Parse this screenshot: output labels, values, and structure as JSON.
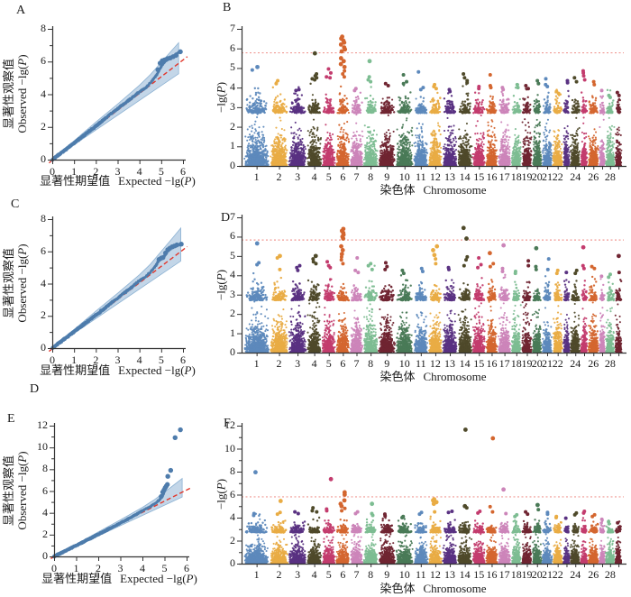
{
  "figure": {
    "stray_label": "D",
    "background": "#ffffff"
  },
  "palette": {
    "chromosome_colors": [
      "#5d89bc",
      "#e9ac44",
      "#5a3282",
      "#4f4a2a",
      "#c33c6e",
      "#d4662f",
      "#cc85b9",
      "#7dbd92",
      "#702532",
      "#4a7a57"
    ],
    "qq_point": "#4e7cac",
    "qq_band_fill": "#b9cfe4",
    "qq_band_edge": "#8db2d3",
    "identity_line": "#e2382c",
    "threshold_line": "#f09a94",
    "axis": "#333333"
  },
  "chart_data": [
    {
      "panel": "A",
      "type": "scatter",
      "subtype": "qq",
      "xlabel_cn": "显著性期望值",
      "xlabel_en": {
        "pre": "Expected −lg(",
        "italic": "P",
        "post": ")"
      },
      "ylabel_cn": "显著性观察值",
      "ylabel_en": {
        "pre": "Observed −lg(",
        "italic": "P",
        "post": ")"
      },
      "xlim": [
        0,
        6
      ],
      "ylim": [
        0,
        8
      ],
      "xticks": [
        0,
        1,
        2,
        3,
        4,
        5,
        6
      ],
      "yticks": [
        0,
        2,
        4,
        6,
        8
      ],
      "yticks_minor": [
        1,
        3,
        5,
        7
      ],
      "curve": [
        [
          0,
          0
        ],
        [
          0.5,
          0.5
        ],
        [
          1,
          1.02
        ],
        [
          1.5,
          1.53
        ],
        [
          2,
          2.05
        ],
        [
          2.5,
          2.6
        ],
        [
          3,
          3.12
        ],
        [
          3.5,
          3.62
        ],
        [
          4,
          4.15
        ],
        [
          4.3,
          4.4
        ],
        [
          4.6,
          4.85
        ],
        [
          4.8,
          5.2
        ],
        [
          5.0,
          5.7
        ],
        [
          5.15,
          6.0
        ],
        [
          5.3,
          6.15
        ],
        [
          5.5,
          6.25
        ],
        [
          5.8,
          6.55
        ]
      ],
      "tail_points": [
        [
          4.85,
          5.5
        ],
        [
          4.95,
          5.9
        ],
        [
          5.05,
          6.05
        ],
        [
          5.15,
          6.1
        ],
        [
          5.22,
          6.12
        ],
        [
          5.3,
          6.18
        ],
        [
          5.42,
          6.22
        ],
        [
          5.55,
          6.3
        ],
        [
          5.68,
          6.38
        ],
        [
          5.88,
          6.6
        ]
      ],
      "band": {
        "top": [
          [
            0,
            0.1
          ],
          [
            1,
            1.15
          ],
          [
            2,
            2.3
          ],
          [
            3,
            3.4
          ],
          [
            4,
            4.55
          ],
          [
            4.5,
            5.2
          ],
          [
            5,
            5.95
          ],
          [
            5.4,
            6.55
          ],
          [
            5.8,
            7.15
          ]
        ],
        "x_end": 5.8,
        "bottom_end": 5.25
      },
      "identity_line": true
    },
    {
      "panel": "B",
      "type": "scatter",
      "subtype": "manhattan",
      "xlabel_cn": "染色体",
      "xlabel_en": "Chromosome",
      "ylabel": {
        "pre": "−lg(",
        "italic": "P",
        "post": ")"
      },
      "ylim": [
        0,
        7
      ],
      "yticks": [
        0,
        1,
        2,
        3,
        4,
        5,
        6,
        7
      ],
      "yticks_minor": [],
      "threshold": 5.8,
      "chrom_labels": [
        "1",
        "2",
        "3",
        "4",
        "5",
        "6",
        "7",
        "8",
        "9",
        "10",
        "11",
        "12",
        "13",
        "14",
        "15",
        "16",
        "17",
        "18",
        "19",
        "20",
        "21",
        "22",
        "",
        "24",
        "",
        "26",
        "",
        "28",
        ""
      ],
      "chrom_weights": [
        30,
        21,
        21,
        17,
        16,
        16,
        15,
        17,
        20,
        20,
        17,
        16,
        17,
        17,
        15,
        14,
        15,
        12,
        12,
        11,
        12,
        12,
        8,
        12,
        8,
        13,
        7,
        11,
        8
      ],
      "peaks": {
        "1": [
          5.05,
          4.9
        ],
        "2": [
          4.35,
          4.2
        ],
        "3": [
          3.9,
          3.85
        ],
        "4": [
          5.75,
          4.7,
          4.6,
          4.5,
          4.45,
          4.4
        ],
        "5": [
          4.95,
          4.75,
          4.55,
          4.5
        ],
        "6": [
          6.6,
          6.5,
          6.4,
          6.3,
          6.2,
          6.05,
          5.95,
          5.85,
          5.5,
          5.35,
          5.2,
          5.05,
          4.85,
          4.7,
          4.55
        ],
        "7": [
          3.95,
          3.85
        ],
        "8": [
          5.35,
          4.55,
          4.4,
          4.3
        ],
        "9": [
          4.2,
          4.1
        ],
        "10": [
          4.65,
          4.3,
          4.2
        ],
        "11": [
          4.8,
          4.0,
          3.9
        ],
        "12": [
          4.15,
          4.05,
          3.95
        ],
        "13": [
          3.9,
          3.8
        ],
        "14": [
          4.7,
          4.5,
          4.35,
          4.25
        ],
        "15": [
          4.05,
          3.95
        ],
        "16": [
          4.65,
          4.1,
          4.0
        ],
        "17": [
          4.0,
          3.9
        ],
        "18": [
          4.15,
          4.0
        ],
        "19": [
          4.1,
          3.95
        ],
        "20": [
          4.35,
          4.2
        ],
        "21": [
          4.45,
          4.15,
          4.05
        ],
        "22": [
          3.8,
          3.7
        ],
        "23": [
          4.35,
          4.25
        ],
        "24": [
          4.5,
          4.3
        ],
        "25": [
          4.85,
          4.75,
          4.6,
          4.4
        ],
        "26": [
          4.3,
          4.15
        ],
        "27": [
          3.85
        ],
        "28": [
          3.6,
          3.5
        ],
        "29": [
          3.75,
          3.6
        ]
      }
    },
    {
      "panel": "C",
      "type": "scatter",
      "subtype": "qq",
      "xlabel_cn": "显著性期望值",
      "xlabel_en": {
        "pre": "Expected −lg(",
        "italic": "P",
        "post": ")"
      },
      "ylabel_cn": "显著性观察值",
      "ylabel_en": {
        "pre": "Observed −lg(",
        "italic": "P",
        "post": ")"
      },
      "xlim": [
        0,
        6
      ],
      "ylim": [
        0,
        8
      ],
      "xticks": [
        0,
        1,
        2,
        3,
        4,
        5,
        6
      ],
      "yticks": [
        0,
        2,
        4,
        6,
        8
      ],
      "yticks_minor": [
        1,
        3,
        5,
        7
      ],
      "curve": [
        [
          0,
          0
        ],
        [
          1,
          1.02
        ],
        [
          2,
          2.05
        ],
        [
          3,
          3.1
        ],
        [
          3.5,
          3.62
        ],
        [
          4,
          4.18
        ],
        [
          4.3,
          4.45
        ],
        [
          4.6,
          4.85
        ],
        [
          4.75,
          5.1
        ],
        [
          4.9,
          5.5
        ],
        [
          5.0,
          5.58
        ],
        [
          5.1,
          5.62
        ],
        [
          5.25,
          5.95
        ],
        [
          5.4,
          6.15
        ],
        [
          5.6,
          6.3
        ],
        [
          5.9,
          6.45
        ]
      ],
      "tail_points": [
        [
          4.9,
          5.5
        ],
        [
          5.0,
          5.58
        ],
        [
          5.08,
          5.62
        ],
        [
          5.2,
          5.9
        ],
        [
          5.3,
          6.1
        ],
        [
          5.4,
          6.2
        ],
        [
          5.5,
          6.28
        ],
        [
          5.6,
          6.33
        ],
        [
          5.72,
          6.4
        ],
        [
          5.92,
          6.45
        ]
      ],
      "band": {
        "top": [
          [
            0,
            0.1
          ],
          [
            1,
            1.15
          ],
          [
            2,
            2.3
          ],
          [
            3,
            3.4
          ],
          [
            4,
            4.55
          ],
          [
            4.5,
            5.2
          ],
          [
            5,
            6.0
          ],
          [
            5.5,
            6.8
          ],
          [
            5.9,
            7.45
          ]
        ],
        "x_end": 5.9,
        "bottom_end": 5.4
      },
      "identity_line": true
    },
    {
      "panel": "D",
      "type": "scatter",
      "subtype": "manhattan",
      "xlabel_cn": "染色体",
      "xlabel_en": "Chromosome",
      "ylabel": {
        "pre": "−lg(",
        "italic": "P",
        "post": ")"
      },
      "ylim": [
        0,
        7
      ],
      "yticks": [
        0,
        1,
        2,
        3,
        4,
        5,
        6,
        7
      ],
      "yticks_minor": [],
      "threshold": 5.85,
      "chrom_labels": [
        "1",
        "2",
        "3",
        "4",
        "5",
        "6",
        "7",
        "8",
        "9",
        "10",
        "11",
        "12",
        "13",
        "14",
        "15",
        "16",
        "17",
        "18",
        "19",
        "20",
        "21",
        "22",
        "",
        "24",
        "",
        "26",
        "",
        "28",
        ""
      ],
      "chrom_weights": [
        30,
        21,
        21,
        17,
        16,
        16,
        15,
        17,
        20,
        20,
        17,
        16,
        17,
        17,
        15,
        14,
        15,
        12,
        12,
        11,
        12,
        12,
        8,
        12,
        8,
        13,
        7,
        11,
        8
      ],
      "peaks": {
        "1": [
          5.65,
          4.65,
          4.55
        ],
        "2": [
          5.0,
          4.9,
          4.3
        ],
        "3": [
          4.5,
          4.4,
          4.25
        ],
        "4": [
          5.0,
          4.85,
          4.7,
          4.6
        ],
        "5": [
          4.7,
          4.5,
          4.4
        ],
        "6": [
          6.4,
          6.3,
          6.2,
          6.1,
          6.0,
          5.9,
          5.5,
          5.3,
          5.1,
          4.95,
          4.8,
          4.6
        ],
        "7": [
          4.9,
          4.25,
          4.15
        ],
        "8": [
          4.6,
          4.5,
          4.3
        ],
        "9": [
          4.65,
          4.45,
          4.3
        ],
        "10": [
          4.25,
          4.1
        ],
        "11": [
          4.35,
          4.2
        ],
        "12": [
          5.5,
          5.3,
          5.05,
          4.85,
          4.6
        ],
        "13": [
          4.4,
          4.3
        ],
        "14": [
          6.45,
          5.9,
          4.95,
          4.8,
          4.5
        ],
        "15": [
          4.9,
          4.55,
          4.4
        ],
        "16": [
          5.15,
          4.6,
          4.45
        ],
        "17": [
          5.55,
          4.35,
          4.2
        ],
        "18": [
          4.2,
          4.1
        ],
        "19": [
          4.75,
          4.5
        ],
        "20": [
          5.4,
          4.45,
          4.3
        ],
        "21": [
          4.85,
          4.3
        ],
        "22": [
          4.25,
          4.1
        ],
        "23": [
          4.15
        ],
        "24": [
          4.25,
          4.1
        ],
        "25": [
          5.45,
          4.5,
          4.35
        ],
        "26": [
          4.45,
          4.35
        ],
        "27": [
          3.95
        ],
        "28": [
          4.05,
          3.9
        ],
        "29": [
          5.0,
          4.15
        ]
      }
    },
    {
      "panel": "E",
      "type": "scatter",
      "subtype": "qq",
      "xlabel_cn": "显著性期望值",
      "xlabel_en": {
        "pre": "Expected −lg(",
        "italic": "P",
        "post": ")"
      },
      "ylabel_cn": "显著性观察值",
      "ylabel_en": {
        "pre": "Observed −lg(",
        "italic": "P",
        "post": ")"
      },
      "xlim": [
        0,
        6
      ],
      "ylim": [
        0,
        12
      ],
      "xticks": [
        0,
        1,
        2,
        3,
        4,
        5,
        6
      ],
      "yticks": [
        0,
        2,
        4,
        6,
        8,
        10,
        12
      ],
      "yticks_minor": [
        1,
        3,
        5,
        7,
        9,
        11
      ],
      "curve": [
        [
          0,
          0
        ],
        [
          1,
          1.0
        ],
        [
          2,
          2.02
        ],
        [
          3,
          3.06
        ],
        [
          3.5,
          3.6
        ],
        [
          4,
          4.2
        ],
        [
          4.3,
          4.5
        ],
        [
          4.6,
          4.9
        ],
        [
          4.8,
          5.25
        ],
        [
          4.95,
          5.7
        ],
        [
          5.05,
          6.2
        ],
        [
          5.15,
          6.6
        ]
      ],
      "tail_points": [
        [
          4.85,
          5.5
        ],
        [
          4.92,
          5.9
        ],
        [
          4.98,
          6.1
        ],
        [
          5.03,
          6.3
        ],
        [
          5.08,
          6.45
        ],
        [
          5.13,
          6.6
        ],
        [
          5.15,
          7.35
        ],
        [
          5.28,
          7.9
        ],
        [
          5.48,
          10.9
        ],
        [
          5.72,
          11.62
        ]
      ],
      "band": {
        "top": [
          [
            0,
            0.1
          ],
          [
            1,
            1.12
          ],
          [
            2,
            2.25
          ],
          [
            3,
            3.35
          ],
          [
            4,
            4.5
          ],
          [
            4.5,
            5.15
          ],
          [
            5,
            5.9
          ],
          [
            5.45,
            6.6
          ],
          [
            5.8,
            7.15
          ]
        ],
        "x_end": 5.8,
        "bottom_end": 5.45
      },
      "identity_line": true
    },
    {
      "panel": "F",
      "type": "scatter",
      "subtype": "manhattan",
      "xlabel_cn": "染色体",
      "xlabel_en": "Chromosome",
      "ylabel": {
        "pre": "−lg(",
        "italic": "P",
        "post": ")"
      },
      "ylim": [
        0,
        12
      ],
      "yticks": [
        0,
        2,
        4,
        6,
        8,
        10,
        12
      ],
      "yticks_minor": [
        1,
        3,
        5,
        7,
        9,
        11
      ],
      "threshold": 5.85,
      "chrom_labels": [
        "1",
        "2",
        "3",
        "4",
        "5",
        "6",
        "7",
        "8",
        "9",
        "10",
        "11",
        "12",
        "13",
        "14",
        "15",
        "16",
        "17",
        "18",
        "19",
        "20",
        "21",
        "22",
        "",
        "24",
        "",
        "26",
        "",
        "28",
        ""
      ],
      "chrom_weights": [
        30,
        21,
        21,
        17,
        16,
        16,
        15,
        17,
        20,
        20,
        17,
        16,
        17,
        17,
        15,
        14,
        15,
        12,
        12,
        11,
        12,
        12,
        8,
        12,
        8,
        13,
        7,
        11,
        8
      ],
      "peaks": {
        "1": [
          7.95,
          4.35,
          4.2
        ],
        "2": [
          5.45,
          4.45,
          4.3
        ],
        "3": [
          4.5,
          4.35
        ],
        "4": [
          4.85,
          4.6,
          4.5
        ],
        "5": [
          7.35,
          4.75,
          4.6
        ],
        "6": [
          6.2,
          6.0,
          5.5,
          5.2,
          5.0,
          4.8,
          4.6
        ],
        "7": [
          4.5,
          4.35
        ],
        "8": [
          5.2,
          4.35,
          4.2
        ],
        "9": [
          4.3,
          4.15
        ],
        "10": [
          4.1,
          4.0
        ],
        "11": [
          4.45,
          4.3
        ],
        "12": [
          5.6,
          5.5,
          5.35,
          5.2,
          4.5
        ],
        "13": [
          4.55,
          4.45
        ],
        "14": [
          11.65,
          5.0,
          4.85
        ],
        "15": [
          4.55,
          4.4
        ],
        "16": [
          10.9,
          4.95,
          4.5
        ],
        "17": [
          6.45,
          4.35
        ],
        "18": [
          4.25,
          4.1
        ],
        "19": [
          4.5,
          4.3
        ],
        "20": [
          5.1,
          4.7
        ],
        "21": [
          4.45,
          4.3
        ],
        "22": [
          4.1,
          4.0
        ],
        "23": [
          3.95
        ],
        "24": [
          4.4,
          4.25
        ],
        "25": [
          4.55,
          4.4
        ],
        "26": [
          4.25,
          4.1
        ],
        "27": [
          3.85
        ],
        "28": [
          3.65
        ],
        "29": [
          3.55
        ]
      }
    }
  ]
}
